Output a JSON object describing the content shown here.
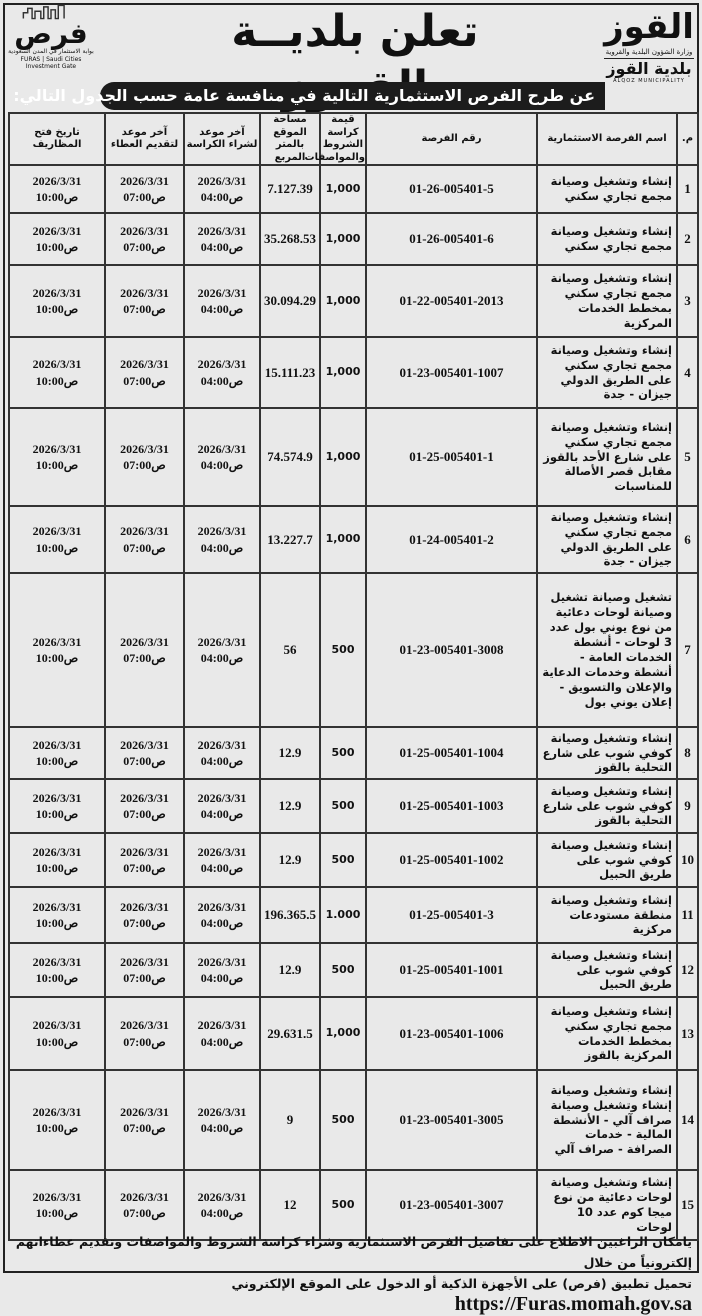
{
  "header": {
    "title": "تعلن بلديــة القــوز",
    "subtitle": "عن طرح الفرص الاستثمارية التالية في منافسة عامة حسب الجدول التالي:",
    "logo_right": {
      "mark": "القوز",
      "ministry": "وزارة الشؤون البلدية والقروية",
      "name": "بلدية القوز",
      "en": "ALQOZ MUNICIPALITY"
    },
    "logo_left": {
      "mark": "فرص",
      "ar": "بوابة الاستثمار في المدن السعودية",
      "en": "FURAS | Saudi Cities Investment Gate"
    }
  },
  "table": {
    "columns": [
      "م.",
      "اسم الفرصة الاستثمارية",
      "رقم الفرصة",
      "قيمة كراسة الشروط والمواصفات",
      "مساحة الموقع بالمتر المربع",
      "آخر موعد لشراء الكراسة",
      "آخر موعد لتقديم العطاء",
      "تاريخ فتح المظاريف"
    ],
    "rows": [
      {
        "n": "1",
        "name": "إنشاء وتشغيل وصيانة مجمع تجاري سكني",
        "id": "01-26-005401-5",
        "price": "1,000",
        "area": "7.127.39",
        "buy": "2026/3/31 04:00ص",
        "submit": "2026/3/31 07:00ص",
        "open": "2026/3/31 10:00ص"
      },
      {
        "n": "2",
        "name": "إنشاء وتشغيل وصيانة مجمع تجاري سكني",
        "id": "01-26-005401-6",
        "price": "1,000",
        "area": "35.268.53",
        "buy": "2026/3/31 04:00ص",
        "submit": "2026/3/31 07:00ص",
        "open": "2026/3/31 10:00ص"
      },
      {
        "n": "3",
        "name": "إنشاء وتشغيل وصيانة مجمع تجاري سكني بمخطط الخدمات المركزية",
        "id": "01-22-005401-2013",
        "price": "1,000",
        "area": "30.094.29",
        "buy": "2026/3/31 04:00ص",
        "submit": "2026/3/31 07:00ص",
        "open": "2026/3/31 10:00ص"
      },
      {
        "n": "4",
        "name": "إنشاء وتشغيل وصيانة مجمع تجاري سكني على الطريق الدولي جيزان - جدة",
        "id": "01-23-005401-1007",
        "price": "1,000",
        "area": "15.111.23",
        "buy": "2026/3/31 04:00ص",
        "submit": "2026/3/31 07:00ص",
        "open": "2026/3/31 10:00ص"
      },
      {
        "n": "5",
        "name": "إنشاء وتشغيل وصيانة مجمع تجاري سكني على شارع الأحد بالقوز مقابل قصر الأصالة للمناسبات",
        "id": "01-25-005401-1",
        "price": "1,000",
        "area": "74.574.9",
        "buy": "2026/3/31 04:00ص",
        "submit": "2026/3/31 07:00ص",
        "open": "2026/3/31 10:00ص"
      },
      {
        "n": "6",
        "name": "إنشاء وتشغيل وصيانة مجمع تجاري سكني على الطريق الدولي جيزان - جدة",
        "id": "01-24-005401-2",
        "price": "1,000",
        "area": "13.227.7",
        "buy": "2026/3/31 04:00ص",
        "submit": "2026/3/31 07:00ص",
        "open": "2026/3/31 10:00ص"
      },
      {
        "n": "7",
        "name": "تشغيل وصيانة تشغيل وصيانة لوحات دعائية من نوع يوني بول عدد 3 لوحات - أنشطة الخدمات العامة - أنشطة وخدمات الدعاية والإعلان والتسويق - إعلان يوني بول",
        "id": "01-23-005401-3008",
        "price": "500",
        "area": "56",
        "buy": "2026/3/31 04:00ص",
        "submit": "2026/3/31 07:00ص",
        "open": "2026/3/31 10:00ص"
      },
      {
        "n": "8",
        "name": "إنشاء وتشغيل وصيانة كوفي شوب على شارع التحلية بالقوز",
        "id": "01-25-005401-1004",
        "price": "500",
        "area": "12.9",
        "buy": "2026/3/31 04:00ص",
        "submit": "2026/3/31 07:00ص",
        "open": "2026/3/31 10:00ص"
      },
      {
        "n": "9",
        "name": "إنشاء وتشغيل وصيانة كوفي شوب على شارع التحلية بالقوز",
        "id": "01-25-005401-1003",
        "price": "500",
        "area": "12.9",
        "buy": "2026/3/31 04:00ص",
        "submit": "2026/3/31 07:00ص",
        "open": "2026/3/31 10:00ص"
      },
      {
        "n": "10",
        "name": "إنشاء وتشغيل وصيانة كوفي شوب على طريق الحبيل",
        "id": "01-25-005401-1002",
        "price": "500",
        "area": "12.9",
        "buy": "2026/3/31 04:00ص",
        "submit": "2026/3/31 07:00ص",
        "open": "2026/3/31 10:00ص"
      },
      {
        "n": "11",
        "name": "إنشاء وتشغيل وصيانة منطقة مستودعات مركزية",
        "id": "01-25-005401-3",
        "price": "1.000",
        "area": "196.365.5",
        "buy": "2026/3/31 04:00ص",
        "submit": "2026/3/31 07:00ص",
        "open": "2026/3/31 10:00ص"
      },
      {
        "n": "12",
        "name": "إنشاء وتشغيل وصيانة كوفي شوب على طريق الحبيل",
        "id": "01-25-005401-1001",
        "price": "500",
        "area": "12.9",
        "buy": "2026/3/31 04:00ص",
        "submit": "2026/3/31 07:00ص",
        "open": "2026/3/31 10:00ص"
      },
      {
        "n": "13",
        "name": "إنشاء وتشغيل وصيانة مجمع تجاري سكني بمخطط الخدمات المركزية بالقوز",
        "id": "01-23-005401-1006",
        "price": "1,000",
        "area": "29.631.5",
        "buy": "2026/3/31 04:00ص",
        "submit": "2026/3/31 07:00ص",
        "open": "2026/3/31 10:00ص"
      },
      {
        "n": "14",
        "name": "إنشاء وتشغيل وصيانة إنشاء وتشغيل وصيانة صراف آلي - الأنشطة المالية - خدمات الصرافة - صراف آلي",
        "id": "01-23-005401-3005",
        "price": "500",
        "area": "9",
        "buy": "2026/3/31 04:00ص",
        "submit": "2026/3/31 07:00ص",
        "open": "2026/3/31 10:00ص"
      },
      {
        "n": "15",
        "name": "إنشاء وتشغيل وصيانة لوحات دعائية من نوع ميجا كوم عدد 10 لوحات",
        "id": "01-23-005401-3007",
        "price": "500",
        "area": "12",
        "buy": "2026/3/31 04:00ص",
        "submit": "2026/3/31 07:00ص",
        "open": "2026/3/31 10:00ص"
      }
    ]
  },
  "footer": {
    "line1": "يامكان الراغبين الاطلاع على تفاصيل الفرص الاستثمارية وشراء كراسة الشروط والمواصفات وتقديم عطاءاتهم إلكترونياً من خلال",
    "line2": "تحميل تطبيق (فرص) على الأجهزة الذكية أو الدخول على الموقع الإلكتروني",
    "url": "https://Furas.momah.gov.sa"
  }
}
